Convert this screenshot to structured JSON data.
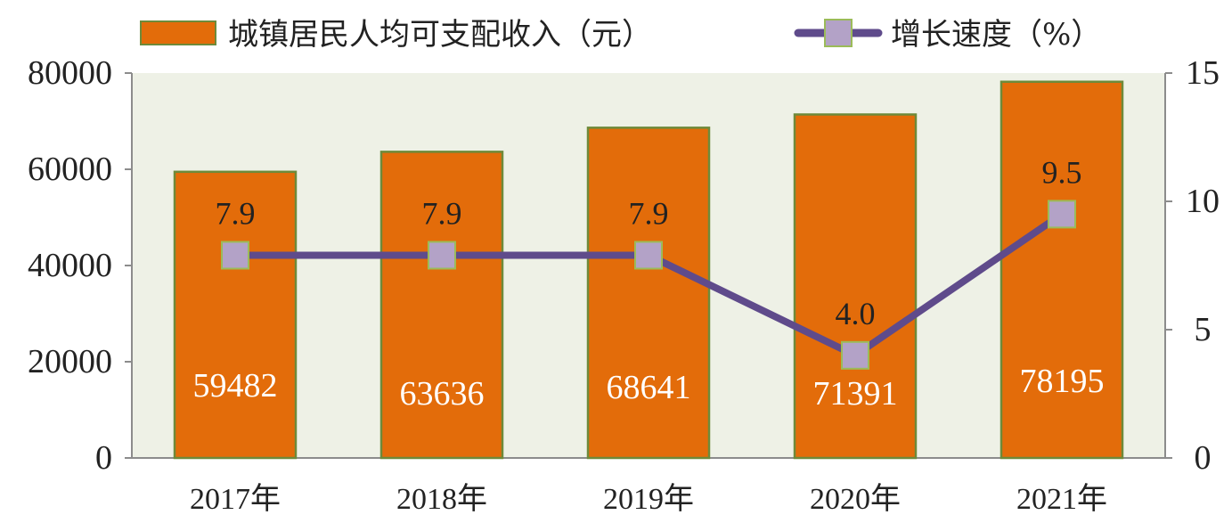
{
  "chart_data": {
    "type": "bar",
    "categories": [
      "2017年",
      "2018年",
      "2019年",
      "2020年",
      "2021年"
    ],
    "series": [
      {
        "name": "城镇居民人均可支配收入（元）",
        "type": "bar",
        "axis": "left",
        "values": [
          59482,
          63636,
          68641,
          71391,
          78195
        ],
        "color": "#e36c0a"
      },
      {
        "name": "增长速度（%）",
        "type": "line",
        "axis": "right",
        "values": [
          7.9,
          7.9,
          7.9,
          4.0,
          9.5
        ],
        "labels": [
          "7.9",
          "7.9",
          "7.9",
          "4.0",
          "9.5"
        ],
        "color": "#5f4b8b",
        "marker_color": "#b3a2c7"
      }
    ],
    "ylim_left": [
      0,
      80000
    ],
    "yticks_left": [
      "0",
      "20000",
      "40000",
      "60000",
      "80000"
    ],
    "ylim_right": [
      0,
      15
    ],
    "yticks_right": [
      "0",
      "5",
      "10",
      "15"
    ],
    "legend_position": "top",
    "plot_background": "#eef1e6",
    "grid": false
  }
}
